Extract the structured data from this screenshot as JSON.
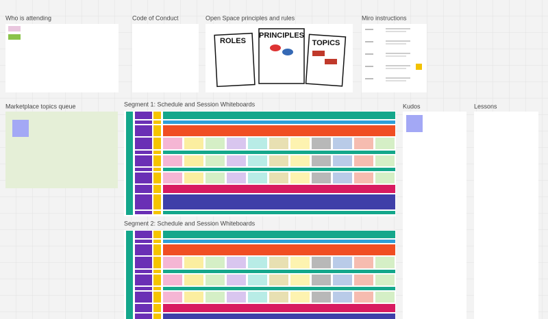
{
  "frames": [
    {
      "title": "Who is attending"
    },
    {
      "title": "Code of Conduct"
    },
    {
      "title": "Open Space principles and rules",
      "cards": [
        "ROLES",
        "PRINCIPLES",
        "TOPICS"
      ]
    },
    {
      "title": "Miro instructions"
    },
    {
      "title": "Marketplace topics queue"
    },
    {
      "title": "Segment 1: Schedule and Session Whiteboards"
    },
    {
      "title": "Segment 2: Schedule and Session Whiteboards"
    },
    {
      "title": "Kudos"
    },
    {
      "title": "Lessons"
    }
  ]
}
